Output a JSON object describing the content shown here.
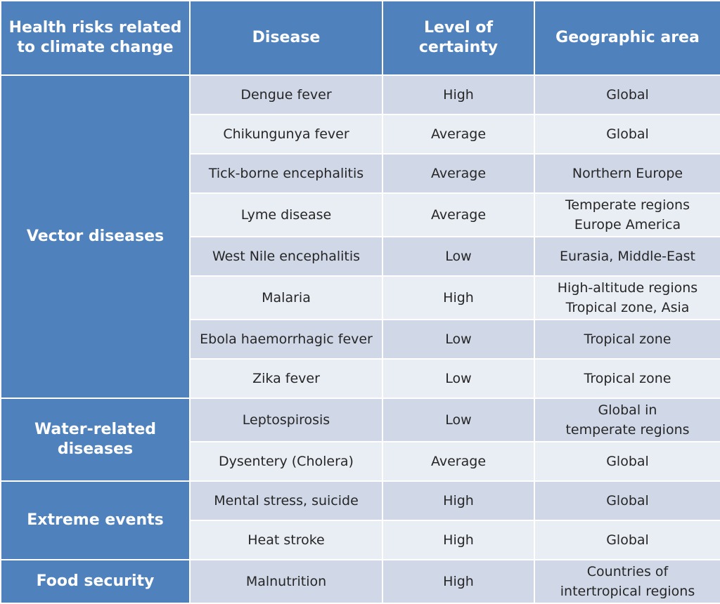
{
  "colors": {
    "header_bg": "#4f81bd",
    "row_dark": "#d0d8e8",
    "row_light": "#e9edf4"
  },
  "header": {
    "risk": "Health risks related to climate change",
    "disease": "Disease",
    "certainty": "Level of certainty",
    "area": "Geographic area"
  },
  "groups": {
    "vector": "Vector diseases",
    "water": "Water-related diseases",
    "extreme": "Extreme events",
    "food": "Food security"
  },
  "rows": [
    {
      "disease": "Dengue fever",
      "certainty": "High",
      "area": "Global"
    },
    {
      "disease": "Chikungunya fever",
      "certainty": "Average",
      "area": "Global"
    },
    {
      "disease": "Tick-borne encephalitis",
      "certainty": "Average",
      "area": "Northern Europe"
    },
    {
      "disease": "Lyme disease",
      "certainty": "Average",
      "area": "Temperate regions\nEurope America"
    },
    {
      "disease": "West Nile encephalitis",
      "certainty": "Low",
      "area": "Eurasia, Middle-East"
    },
    {
      "disease": "Malaria",
      "certainty": "High",
      "area": "High-altitude regions\nTropical zone, Asia"
    },
    {
      "disease": "Ebola haemorrhagic fever",
      "certainty": "Low",
      "area": "Tropical zone"
    },
    {
      "disease": "Zika fever",
      "certainty": "Low",
      "area": "Tropical zone"
    },
    {
      "disease": "Leptospirosis",
      "certainty": "Low",
      "area": "Global in\ntemperate regions"
    },
    {
      "disease": "Dysentery (Cholera)",
      "certainty": "Average",
      "area": "Global"
    },
    {
      "disease": "Mental stress, suicide",
      "certainty": "High",
      "area": "Global"
    },
    {
      "disease": "Heat stroke",
      "certainty": "High",
      "area": "Global"
    },
    {
      "disease": "Malnutrition",
      "certainty": "High",
      "area": "Countries of\nintertropical regions"
    }
  ]
}
